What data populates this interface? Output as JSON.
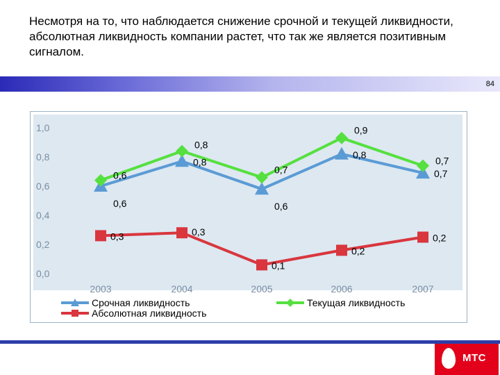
{
  "slide": {
    "heading": "Несмотря на то, что наблюдается снижение срочной и текущей ликвидности, абсолютная ликвидность компании растет, что так же является позитивным сигналом.",
    "page_number": "84",
    "logo_text": "МТС"
  },
  "chart_data": {
    "type": "line",
    "categories": [
      "2003",
      "2004",
      "2005",
      "2006",
      "2007"
    ],
    "ylim": [
      0,
      1
    ],
    "y_ticks": [
      "0,0",
      "0,2",
      "0,4",
      "0,6",
      "0,8",
      "1,0"
    ],
    "grid": false,
    "legend_position": "bottom",
    "series": [
      {
        "name": "Срочная ликвидность",
        "values": [
          0.6,
          0.77,
          0.58,
          0.82,
          0.69
        ],
        "labels": [
          "0,6",
          "0,8",
          "0,6",
          "0,8",
          "0,7"
        ],
        "color": "#5b9bd5",
        "marker": "triangle"
      },
      {
        "name": "Текущая ликвидность",
        "values": [
          0.64,
          0.84,
          0.66,
          0.93,
          0.74
        ],
        "labels": [
          "0,6",
          "0,8",
          "0,7",
          "0,9",
          "0,7"
        ],
        "color": "#55e03f",
        "marker": "diamond"
      },
      {
        "name": "Абсолютная ликвидность",
        "values": [
          0.26,
          0.28,
          0.06,
          0.16,
          0.25
        ],
        "labels": [
          "0,3",
          "0,3",
          "0,1",
          "0,2",
          "0,2"
        ],
        "color": "#d9363e",
        "marker": "square"
      }
    ]
  }
}
